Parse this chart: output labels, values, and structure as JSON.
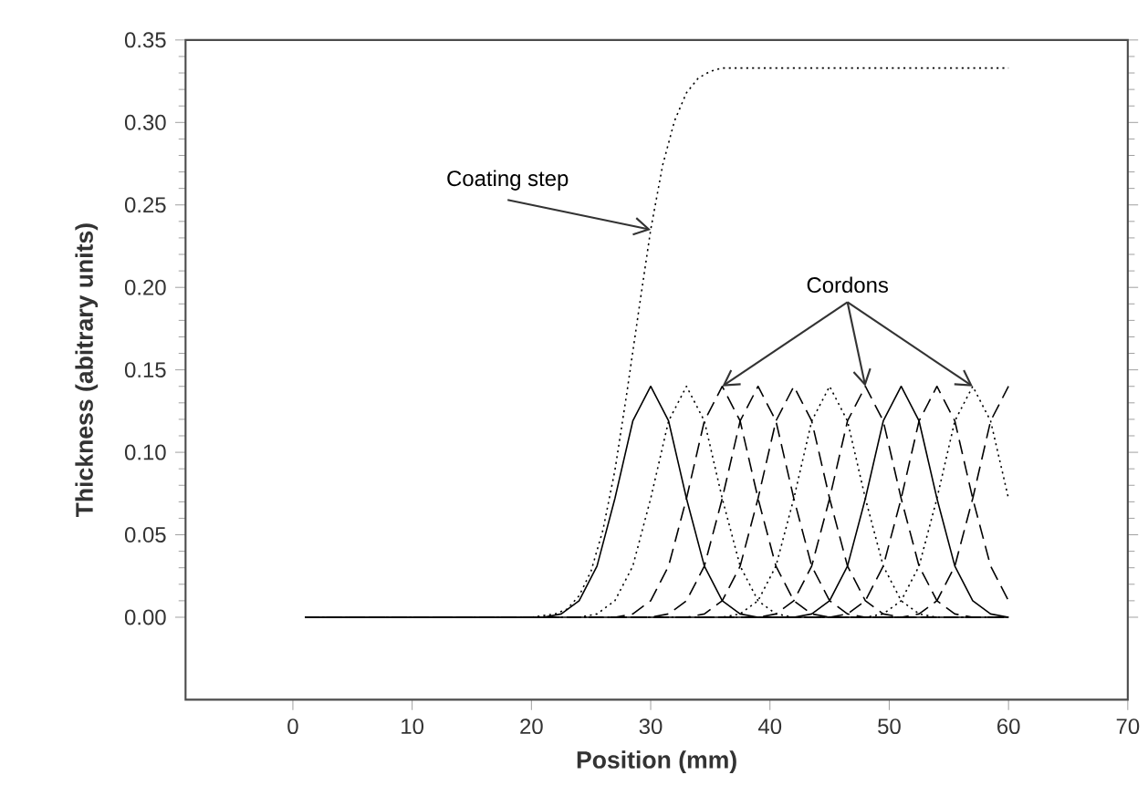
{
  "chart_data": {
    "type": "line",
    "xlabel": "Position (mm)",
    "ylabel": "Thickness (abitrary units)",
    "xlim": [
      -9,
      70
    ],
    "xticks": [
      0,
      10,
      20,
      30,
      40,
      50,
      60,
      70
    ],
    "ylim": [
      -0.05,
      0.35
    ],
    "yticks": [
      {
        "value": 0,
        "label": "0.00"
      },
      0.05,
      {
        "value": 0.1,
        "label": "0.10"
      },
      0.15,
      {
        "value": 0.2,
        "label": "0.20"
      },
      0.25,
      {
        "value": 0.3,
        "label": "0.30"
      },
      0.35
    ],
    "grid": false,
    "marker": "none",
    "series": [
      {
        "color": "#000000",
        "line_style": "dotted",
        "x": [
          1,
          20,
          22,
          23,
          24,
          25,
          26,
          27,
          28,
          29,
          30,
          31,
          32,
          33,
          34,
          35,
          36,
          60
        ],
        "values": [
          0,
          0,
          0.002,
          0.005,
          0.013,
          0.028,
          0.053,
          0.089,
          0.136,
          0.186,
          0.235,
          0.274,
          0.301,
          0.318,
          0.327,
          0.331,
          0.333,
          0.333
        ]
      },
      {
        "color": "#000000",
        "line_style": "solid",
        "x": [
          1,
          21,
          22.5,
          24,
          25.5,
          27,
          28.5,
          30,
          31.5,
          33,
          34.5,
          36,
          37.5,
          39,
          60
        ],
        "values": [
          0,
          0,
          0.002,
          0.01,
          0.031,
          0.072,
          0.119,
          0.14,
          0.119,
          0.072,
          0.031,
          0.01,
          0.002,
          0,
          0
        ]
      },
      {
        "color": "#000000",
        "line_style": "dotted",
        "x": [
          1,
          24,
          25.5,
          27,
          28.5,
          30,
          31.5,
          33,
          34.5,
          36,
          37.5,
          39,
          40.5,
          42,
          60
        ],
        "values": [
          0,
          0,
          0.002,
          0.01,
          0.031,
          0.072,
          0.119,
          0.14,
          0.119,
          0.072,
          0.031,
          0.01,
          0.002,
          0,
          0
        ]
      },
      {
        "color": "#000000",
        "line_style": "dashed",
        "x": [
          1,
          27,
          28.5,
          30,
          31.5,
          33,
          34.5,
          36,
          37.5,
          39,
          40.5,
          42,
          43.5,
          45,
          60
        ],
        "values": [
          0,
          0,
          0.002,
          0.01,
          0.031,
          0.072,
          0.119,
          0.14,
          0.119,
          0.072,
          0.031,
          0.01,
          0.002,
          0,
          0
        ]
      },
      {
        "color": "#000000",
        "line_style": "dashed",
        "x": [
          1,
          30,
          31.5,
          33,
          34.5,
          36,
          37.5,
          39,
          40.5,
          42,
          43.5,
          45,
          46.5,
          48,
          60
        ],
        "values": [
          0,
          0,
          0.002,
          0.01,
          0.031,
          0.072,
          0.119,
          0.14,
          0.119,
          0.072,
          0.031,
          0.01,
          0.002,
          0,
          0
        ]
      },
      {
        "color": "#000000",
        "line_style": "dashed",
        "x": [
          1,
          33,
          34.5,
          36,
          37.5,
          39,
          40.5,
          42,
          43.5,
          45,
          46.5,
          48,
          49.5,
          51,
          60
        ],
        "values": [
          0,
          0,
          0.002,
          0.01,
          0.031,
          0.072,
          0.119,
          0.14,
          0.119,
          0.072,
          0.031,
          0.01,
          0.002,
          0,
          0
        ]
      },
      {
        "color": "#000000",
        "line_style": "dotted",
        "x": [
          1,
          36,
          37.5,
          39,
          40.5,
          42,
          43.5,
          45,
          46.5,
          48,
          49.5,
          51,
          52.5,
          54,
          60
        ],
        "values": [
          0,
          0,
          0.002,
          0.01,
          0.031,
          0.072,
          0.119,
          0.14,
          0.119,
          0.072,
          0.031,
          0.01,
          0.002,
          0,
          0
        ]
      },
      {
        "color": "#000000",
        "line_style": "dashed",
        "x": [
          1,
          39,
          40.5,
          42,
          43.5,
          45,
          46.5,
          48,
          49.5,
          51,
          52.5,
          54,
          55.5,
          57,
          60
        ],
        "values": [
          0,
          0,
          0.002,
          0.01,
          0.031,
          0.072,
          0.119,
          0.14,
          0.119,
          0.072,
          0.031,
          0.01,
          0.002,
          0,
          0
        ]
      },
      {
        "color": "#000000",
        "line_style": "solid",
        "x": [
          1,
          42,
          43.5,
          45,
          46.5,
          48,
          49.5,
          51,
          52.5,
          54,
          55.5,
          57,
          58.5,
          60
        ],
        "values": [
          0,
          0,
          0.002,
          0.01,
          0.031,
          0.072,
          0.119,
          0.14,
          0.119,
          0.072,
          0.031,
          0.01,
          0.002,
          0
        ]
      },
      {
        "color": "#000000",
        "line_style": "dashed",
        "x": [
          1,
          45,
          46.5,
          48,
          49.5,
          51,
          52.5,
          54,
          55.5,
          57,
          58.5,
          60
        ],
        "values": [
          0,
          0,
          0.002,
          0.01,
          0.031,
          0.072,
          0.119,
          0.14,
          0.119,
          0.072,
          0.031,
          0.01
        ]
      },
      {
        "color": "#000000",
        "line_style": "dotted",
        "x": [
          1,
          48,
          49.5,
          51,
          52.5,
          54,
          55.5,
          57,
          58.5,
          60
        ],
        "values": [
          0,
          0,
          0.002,
          0.01,
          0.031,
          0.072,
          0.119,
          0.14,
          0.119,
          0.072
        ]
      },
      {
        "color": "#000000",
        "line_style": "dashed",
        "x": [
          1,
          51,
          52.5,
          54,
          55.5,
          57,
          58.5,
          60
        ],
        "values": [
          0,
          0,
          0.002,
          0.01,
          0.031,
          0.072,
          0.119,
          0.14
        ]
      }
    ],
    "annotations": [
      {
        "text": "Coating step",
        "x": 30,
        "y": 0.235
      },
      {
        "text": "Cordons",
        "x": 48,
        "y": 0.14
      }
    ]
  }
}
